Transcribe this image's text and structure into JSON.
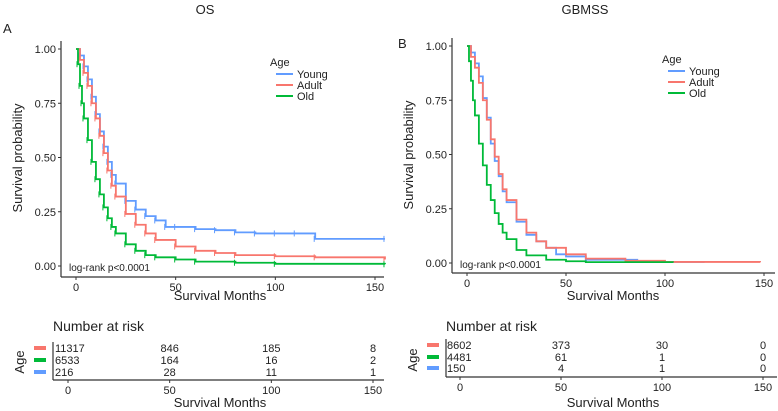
{
  "chart_data": [
    {
      "type": "line",
      "panel_label": "A",
      "title": "OS",
      "xlabel": "Survival Months",
      "ylabel": "Survival probability",
      "xlim": [
        0,
        155
      ],
      "ylim": [
        0,
        1
      ],
      "xticks": [
        0,
        50,
        100,
        150
      ],
      "yticks": [
        "0.00",
        "0.25",
        "0.50",
        "0.75",
        "1.00"
      ],
      "legend": {
        "title": "Age",
        "placement": "top-right",
        "entries": [
          "Young",
          "Adult",
          "Old"
        ]
      },
      "annotation": "log-rank p<0.0001",
      "censor_marks": true,
      "series": [
        {
          "name": "Young",
          "color": "#619CFF",
          "x": [
            0,
            2,
            4,
            6,
            8,
            10,
            12,
            14,
            16,
            18,
            20,
            25,
            30,
            35,
            40,
            45,
            50,
            60,
            70,
            80,
            90,
            100,
            110,
            120,
            155
          ],
          "y": [
            1,
            0.97,
            0.92,
            0.86,
            0.78,
            0.7,
            0.62,
            0.55,
            0.48,
            0.42,
            0.38,
            0.3,
            0.26,
            0.23,
            0.21,
            0.18,
            0.18,
            0.17,
            0.165,
            0.155,
            0.15,
            0.15,
            0.15,
            0.125,
            0.125
          ]
        },
        {
          "name": "Adult",
          "color": "#F8766D",
          "x": [
            0,
            2,
            4,
            6,
            8,
            10,
            12,
            14,
            16,
            18,
            20,
            25,
            30,
            35,
            40,
            50,
            60,
            70,
            80,
            100,
            120,
            155
          ],
          "y": [
            1,
            0.95,
            0.89,
            0.83,
            0.75,
            0.68,
            0.6,
            0.52,
            0.44,
            0.37,
            0.32,
            0.24,
            0.19,
            0.15,
            0.12,
            0.09,
            0.07,
            0.06,
            0.05,
            0.045,
            0.04,
            0.03
          ]
        },
        {
          "name": "Old",
          "color": "#00BA38",
          "x": [
            0,
            1,
            2,
            3,
            4,
            6,
            8,
            10,
            12,
            14,
            16,
            18,
            20,
            25,
            30,
            35,
            40,
            50,
            60,
            80,
            100,
            155
          ],
          "y": [
            1,
            0.93,
            0.83,
            0.75,
            0.68,
            0.58,
            0.48,
            0.4,
            0.33,
            0.27,
            0.22,
            0.18,
            0.15,
            0.1,
            0.07,
            0.05,
            0.04,
            0.03,
            0.02,
            0.015,
            0.01,
            0.008
          ]
        }
      ],
      "risk_table": {
        "title": "Number at risk",
        "strata_label": "Age",
        "xlabel": "Survival Months",
        "xticks": [
          0,
          50,
          100,
          150
        ],
        "rows": [
          {
            "color": "#F8766D",
            "values": [
              "11317",
              "846",
              "185",
              "8"
            ]
          },
          {
            "color": "#00BA38",
            "values": [
              "6533",
              "164",
              "16",
              "2"
            ]
          },
          {
            "color": "#619CFF",
            "values": [
              "216",
              "28",
              "11",
              "1"
            ]
          }
        ]
      }
    },
    {
      "type": "line",
      "panel_label": "B",
      "title": "GBMSS",
      "xlabel": "Survival Months",
      "ylabel": "Survival probability",
      "xlim": [
        0,
        150
      ],
      "ylim": [
        0,
        1
      ],
      "xticks": [
        0,
        50,
        100,
        150
      ],
      "yticks": [
        "0.00",
        "0.25",
        "0.50",
        "0.75",
        "1.00"
      ],
      "legend": {
        "title": "Age",
        "placement": "top-right",
        "entries": [
          "Young",
          "Adult",
          "Old"
        ]
      },
      "annotation": "log-rank p<0.0001",
      "censor_marks": false,
      "series": [
        {
          "name": "Young",
          "color": "#619CFF",
          "x": [
            0,
            2,
            4,
            6,
            8,
            10,
            12,
            14,
            16,
            18,
            20,
            25,
            30,
            35,
            40,
            45,
            50,
            60,
            85,
            86,
            120
          ],
          "y": [
            1,
            0.97,
            0.92,
            0.86,
            0.76,
            0.67,
            0.55,
            0.47,
            0.4,
            0.33,
            0.28,
            0.19,
            0.13,
            0.1,
            0.07,
            0.04,
            0.03,
            0.015,
            0.015,
            0.005,
            0.005
          ]
        },
        {
          "name": "Adult",
          "color": "#F8766D",
          "x": [
            0,
            2,
            4,
            6,
            8,
            10,
            12,
            14,
            16,
            18,
            20,
            25,
            30,
            35,
            40,
            50,
            60,
            80,
            100,
            148
          ],
          "y": [
            1,
            0.95,
            0.9,
            0.83,
            0.75,
            0.66,
            0.57,
            0.49,
            0.41,
            0.34,
            0.29,
            0.2,
            0.14,
            0.1,
            0.07,
            0.04,
            0.02,
            0.01,
            0.005,
            0.003
          ]
        },
        {
          "name": "Old",
          "color": "#00BA38",
          "x": [
            0,
            1,
            2,
            3,
            4,
            6,
            8,
            10,
            12,
            14,
            16,
            18,
            20,
            25,
            30,
            40,
            50,
            60,
            104
          ],
          "y": [
            1,
            0.93,
            0.84,
            0.75,
            0.68,
            0.55,
            0.45,
            0.36,
            0.29,
            0.23,
            0.18,
            0.14,
            0.11,
            0.06,
            0.035,
            0.015,
            0.008,
            0.004,
            0.002
          ]
        }
      ],
      "risk_table": {
        "title": "Number at risk",
        "strata_label": "Age",
        "xlabel": "Survival Months",
        "xticks": [
          0,
          50,
          100,
          150
        ],
        "rows": [
          {
            "color": "#F8766D",
            "values": [
              "8602",
              "373",
              "30",
              "0"
            ]
          },
          {
            "color": "#00BA38",
            "values": [
              "4481",
              "61",
              "1",
              "0"
            ]
          },
          {
            "color": "#619CFF",
            "values": [
              "150",
              "4",
              "1",
              "0"
            ]
          }
        ]
      }
    }
  ]
}
